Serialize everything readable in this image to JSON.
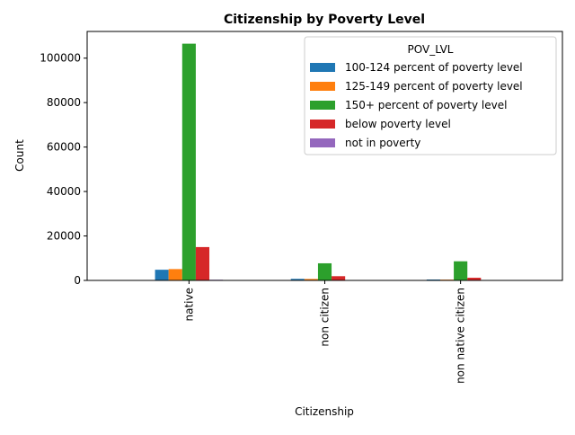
{
  "chart_data": {
    "type": "bar",
    "title": "Citizenship by Poverty Level",
    "xlabel": "Citizenship",
    "ylabel": "Count",
    "ylim": [
      0,
      112000
    ],
    "yticks": [
      0,
      20000,
      40000,
      60000,
      80000,
      100000
    ],
    "grid": false,
    "legend_title": "POV_LVL",
    "legend_position": "top-right",
    "categories": [
      "native",
      "non citizen",
      "non native citizen"
    ],
    "series": [
      {
        "name": "100-124 percent of poverty level",
        "color": "#1f77b4",
        "values": [
          4800,
          700,
          400
        ]
      },
      {
        "name": "125-149 percent of poverty level",
        "color": "#ff7f0e",
        "values": [
          5100,
          650,
          350
        ]
      },
      {
        "name": "150+ percent of poverty level",
        "color": "#2ca02c",
        "values": [
          106500,
          7700,
          8600
        ]
      },
      {
        "name": "below poverty level",
        "color": "#d62728",
        "values": [
          15000,
          1900,
          1200
        ]
      },
      {
        "name": "not in poverty",
        "color": "#9467bd",
        "values": [
          300,
          50,
          50
        ]
      }
    ]
  }
}
